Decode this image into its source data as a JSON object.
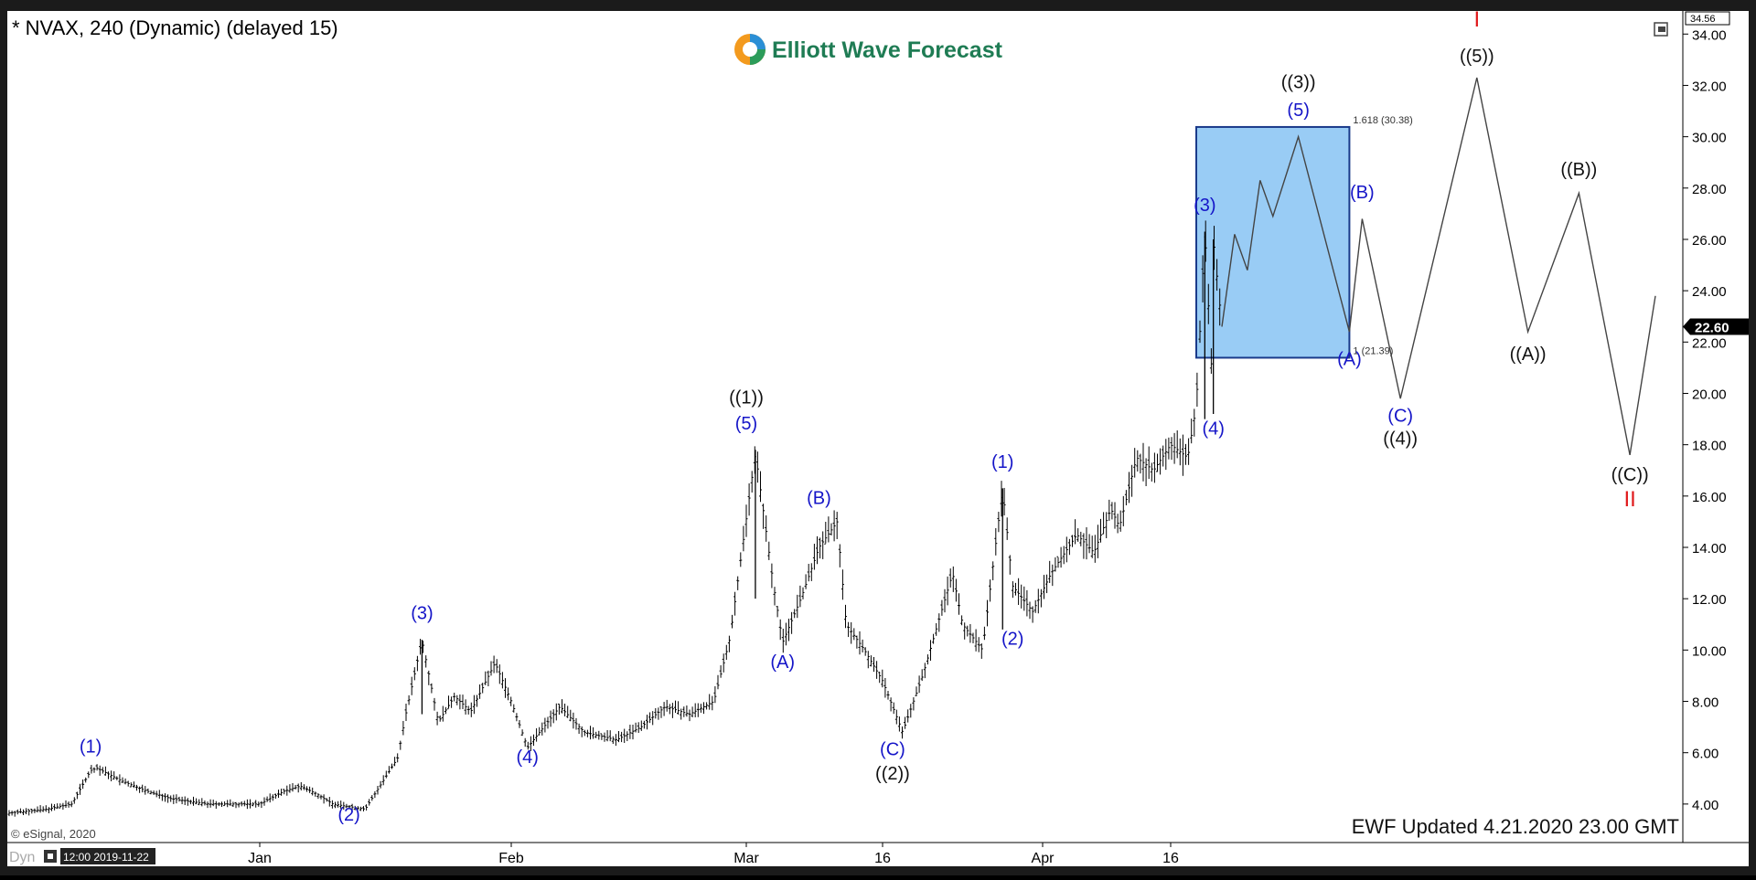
{
  "header": {
    "symbol_title": "* NVAX, 240 (Dynamic) (delayed 15)",
    "logo_text": "Elliott Wave Forecast",
    "copyright": "© eSignal, 2020",
    "updated_text": "EWF Updated 4.21.2020 23.00 GMT",
    "footer_tag": "Dyn",
    "footer_time": "12:00 2019-11-22",
    "price_top_label": "34.56",
    "last_price_label": "22.60"
  },
  "chart_data": {
    "type": "candlestick-bar",
    "y_range": [
      2.5,
      34.9
    ],
    "y_ticks": [
      4,
      6,
      8,
      10,
      12,
      14,
      16,
      18,
      20,
      22,
      24,
      26,
      28,
      30,
      32,
      34
    ],
    "y_tick_labels": [
      "4.00",
      "6.00",
      "8.00",
      "10.00",
      "12.00",
      "14.00",
      "16.00",
      "18.00",
      "20.00",
      "22.00",
      "24.00",
      "26.00",
      "28.00",
      "30.00",
      "32.00",
      "34.00"
    ],
    "x_labels": [
      "Jan",
      "Feb",
      "Mar",
      "16",
      "Apr",
      "16"
    ],
    "price_path": [
      [
        "2019-11-22",
        3.65
      ],
      [
        "2019-11-28",
        3.8
      ],
      [
        "2019-12-02",
        4.0
      ],
      [
        "2019-12-05",
        5.3
      ],
      [
        "2019-12-06",
        5.4
      ],
      [
        "2019-12-10",
        4.9
      ],
      [
        "2019-12-14",
        4.5
      ],
      [
        "2019-12-18",
        4.2
      ],
      [
        "2019-12-24",
        4.0
      ],
      [
        "2020-01-01",
        4.0
      ],
      [
        "2020-01-04",
        4.5
      ],
      [
        "2020-01-06",
        4.7
      ],
      [
        "2020-01-08",
        4.4
      ],
      [
        "2020-01-10",
        4.0
      ],
      [
        "2020-01-14",
        3.8
      ],
      [
        "2020-01-16",
        4.8
      ],
      [
        "2020-01-18",
        5.8
      ],
      [
        "2020-01-19",
        7.5
      ],
      [
        "2020-01-21",
        10.4
      ],
      [
        "2020-01-23",
        7.2
      ],
      [
        "2020-01-25",
        8.2
      ],
      [
        "2020-01-27",
        7.6
      ],
      [
        "2020-01-30",
        9.5
      ],
      [
        "2020-02-01",
        8.0
      ],
      [
        "2020-02-03",
        6.2
      ],
      [
        "2020-02-05",
        7.0
      ],
      [
        "2020-02-07",
        7.8
      ],
      [
        "2020-02-10",
        6.8
      ],
      [
        "2020-02-14",
        6.5
      ],
      [
        "2020-02-17",
        7.0
      ],
      [
        "2020-02-20",
        7.8
      ],
      [
        "2020-02-23",
        7.5
      ],
      [
        "2020-02-26",
        8.0
      ],
      [
        "2020-02-28",
        10.5
      ],
      [
        "2020-03-02",
        17.7
      ],
      [
        "2020-03-04",
        12.5
      ],
      [
        "2020-03-05",
        10.3
      ],
      [
        "2020-03-07",
        12.0
      ],
      [
        "2020-03-09",
        14.0
      ],
      [
        "2020-03-11",
        15.0
      ],
      [
        "2020-03-12",
        11.0
      ],
      [
        "2020-03-14",
        10.0
      ],
      [
        "2020-03-16",
        8.8
      ],
      [
        "2020-03-18",
        6.8
      ],
      [
        "2020-03-20",
        9.0
      ],
      [
        "2020-03-23",
        13.0
      ],
      [
        "2020-03-24",
        11.0
      ],
      [
        "2020-03-26",
        10.0
      ],
      [
        "2020-03-28",
        16.3
      ],
      [
        "2020-03-29",
        12.5
      ],
      [
        "2020-03-31",
        11.5
      ],
      [
        "2020-04-02",
        13.0
      ],
      [
        "2020-04-05",
        14.5
      ],
      [
        "2020-04-07",
        13.8
      ],
      [
        "2020-04-09",
        15.5
      ],
      [
        "2020-04-10",
        14.8
      ],
      [
        "2020-04-12",
        17.5
      ],
      [
        "2020-04-14",
        17.0
      ],
      [
        "2020-04-16",
        18.0
      ],
      [
        "2020-04-18",
        17.5
      ],
      [
        "2020-04-19",
        19.5
      ],
      [
        "2020-04-20",
        26.3
      ],
      [
        "2020-04-21",
        19.5
      ],
      [
        "2020-04-21",
        26.0
      ],
      [
        "2020-04-22",
        22.6
      ]
    ],
    "projection_path": [
      [
        "2020-04-22",
        22.6
      ],
      [
        "2020-04-23",
        26.2
      ],
      [
        "2020-04-24",
        24.8
      ],
      [
        "2020-04-25",
        28.3
      ],
      [
        "2020-04-26",
        26.9
      ],
      [
        "2020-04-28",
        30.0
      ],
      [
        "2020-05-02",
        22.4
      ],
      [
        "2020-05-03",
        26.8
      ],
      [
        "2020-05-06",
        19.8
      ],
      [
        "2020-05-12",
        32.3
      ],
      [
        "2020-05-16",
        22.4
      ],
      [
        "2020-05-20",
        27.8
      ],
      [
        "2020-05-24",
        17.6
      ],
      [
        "2020-05-26",
        23.8
      ]
    ],
    "target_box": {
      "from": "2020-04-19",
      "to": "2020-05-02",
      "low": 21.39,
      "high": 30.38,
      "fill": "#99ccf5",
      "stroke": "#1a3a8a"
    },
    "fib_labels": {
      "high": "1.618 (30.38)",
      "low": "1 (21.39)"
    },
    "wave_labels": [
      {
        "text": "(1)",
        "date": "2019-12-05",
        "price": 6.0,
        "color": "#1515c8"
      },
      {
        "text": "(2)",
        "date": "2020-01-12",
        "price": 3.35,
        "color": "#1515c8"
      },
      {
        "text": "(3)",
        "date": "2020-01-21",
        "price": 11.2,
        "color": "#1515c8"
      },
      {
        "text": "(4)",
        "date": "2020-02-03",
        "price": 5.6,
        "color": "#1515c8"
      },
      {
        "text": "(5)",
        "date": "2020-03-01",
        "price": 18.6,
        "color": "#1515c8"
      },
      {
        "text": "((1))",
        "date": "2020-03-01",
        "price": 19.6,
        "color": "#111111"
      },
      {
        "text": "(A)",
        "date": "2020-03-05",
        "price": 9.3,
        "color": "#1515c8"
      },
      {
        "text": "(B)",
        "date": "2020-03-09",
        "price": 15.7,
        "color": "#1515c8"
      },
      {
        "text": "(C)",
        "date": "2020-03-17",
        "price": 5.9,
        "color": "#1515c8"
      },
      {
        "text": "((2))",
        "date": "2020-03-17",
        "price": 4.95,
        "color": "#111111"
      },
      {
        "text": "(1)",
        "date": "2020-03-28",
        "price": 17.1,
        "color": "#1515c8"
      },
      {
        "text": "(2)",
        "date": "2020-03-29",
        "price": 10.2,
        "color": "#1515c8"
      },
      {
        "text": "(3)",
        "date": "2020-04-20",
        "price": 27.1,
        "color": "#1515c8"
      },
      {
        "text": "(4)",
        "date": "2020-04-21",
        "price": 18.4,
        "color": "#1515c8"
      },
      {
        "text": "(5)",
        "date": "2020-04-28",
        "price": 30.8,
        "color": "#1515c8"
      },
      {
        "text": "((3))",
        "date": "2020-04-28",
        "price": 31.9,
        "color": "#111111"
      },
      {
        "text": "(B)",
        "date": "2020-05-03",
        "price": 27.6,
        "color": "#1515c8"
      },
      {
        "text": "(A)",
        "date": "2020-05-02",
        "price": 21.1,
        "color": "#1515c8"
      },
      {
        "text": "(C)",
        "date": "2020-05-06",
        "price": 18.9,
        "color": "#1515c8"
      },
      {
        "text": "((4))",
        "date": "2020-05-06",
        "price": 18.0,
        "color": "#111111"
      },
      {
        "text": "I",
        "date": "2020-05-12",
        "price": 34.3,
        "color": "#e0191c"
      },
      {
        "text": "((5))",
        "date": "2020-05-12",
        "price": 32.9,
        "color": "#111111"
      },
      {
        "text": "((B))",
        "date": "2020-05-20",
        "price": 28.5,
        "color": "#111111"
      },
      {
        "text": "((A))",
        "date": "2020-05-16",
        "price": 21.3,
        "color": "#111111"
      },
      {
        "text": "((C))",
        "date": "2020-05-24",
        "price": 16.6,
        "color": "#111111"
      },
      {
        "text": "II",
        "date": "2020-05-24",
        "price": 15.6,
        "color": "#e0191c"
      }
    ]
  }
}
